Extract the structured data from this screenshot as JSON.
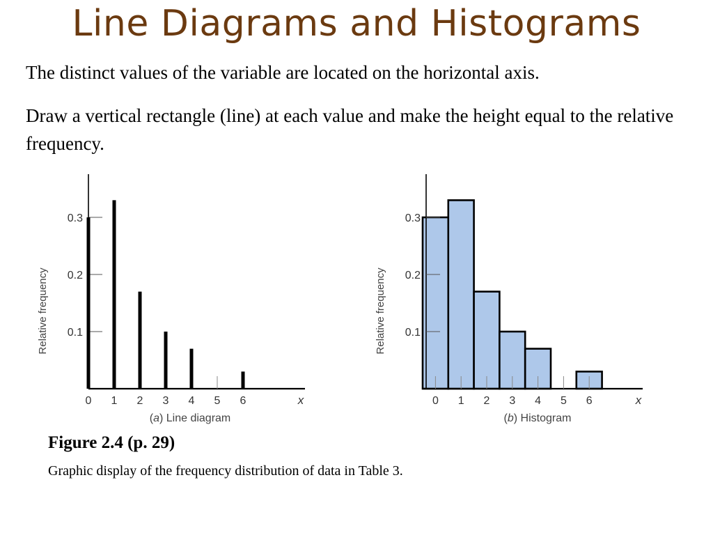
{
  "slide": {
    "title": "Line Diagrams and Histograms",
    "paragraph1": "The distinct values of the variable are located on the horizontal axis.",
    "paragraph2": "Draw a vertical rectangle (line) at each value and make the height equal to the relative frequency.",
    "figure_title": "Figure 2.4  (p. 29)",
    "figure_description": "Graphic display of the frequency distribution of data in Table 3."
  },
  "colors": {
    "title": "#6b3a10",
    "histogram_fill": "#aec8ea",
    "ink": "#000000"
  },
  "chart_data": [
    {
      "type": "bar",
      "style": "line-diagram",
      "caption_letter": "a",
      "caption_text": "Line diagram",
      "xlabel": "x",
      "ylabel": "Relative frequency",
      "categories": [
        "0",
        "1",
        "2",
        "3",
        "4",
        "5",
        "6"
      ],
      "x": [
        0,
        1,
        2,
        3,
        4,
        5,
        6
      ],
      "values": [
        0.3,
        0.33,
        0.17,
        0.1,
        0.07,
        0.0,
        0.03
      ],
      "yticks": [
        "0.1",
        "0.2",
        "0.3"
      ],
      "ylim": [
        0,
        0.37
      ],
      "xlim": [
        0,
        8.5
      ],
      "grid": false
    },
    {
      "type": "bar",
      "style": "histogram",
      "caption_letter": "b",
      "caption_text": "Histogram",
      "xlabel": "x",
      "ylabel": "Relative frequency",
      "categories": [
        "0",
        "1",
        "2",
        "3",
        "4",
        "5",
        "6"
      ],
      "x": [
        0,
        1,
        2,
        3,
        4,
        5,
        6
      ],
      "values": [
        0.3,
        0.33,
        0.17,
        0.1,
        0.07,
        0.0,
        0.03
      ],
      "yticks": [
        "0.1",
        "0.2",
        "0.3"
      ],
      "ylim": [
        0,
        0.37
      ],
      "xlim": [
        -0.5,
        8.5
      ],
      "grid": false
    }
  ]
}
